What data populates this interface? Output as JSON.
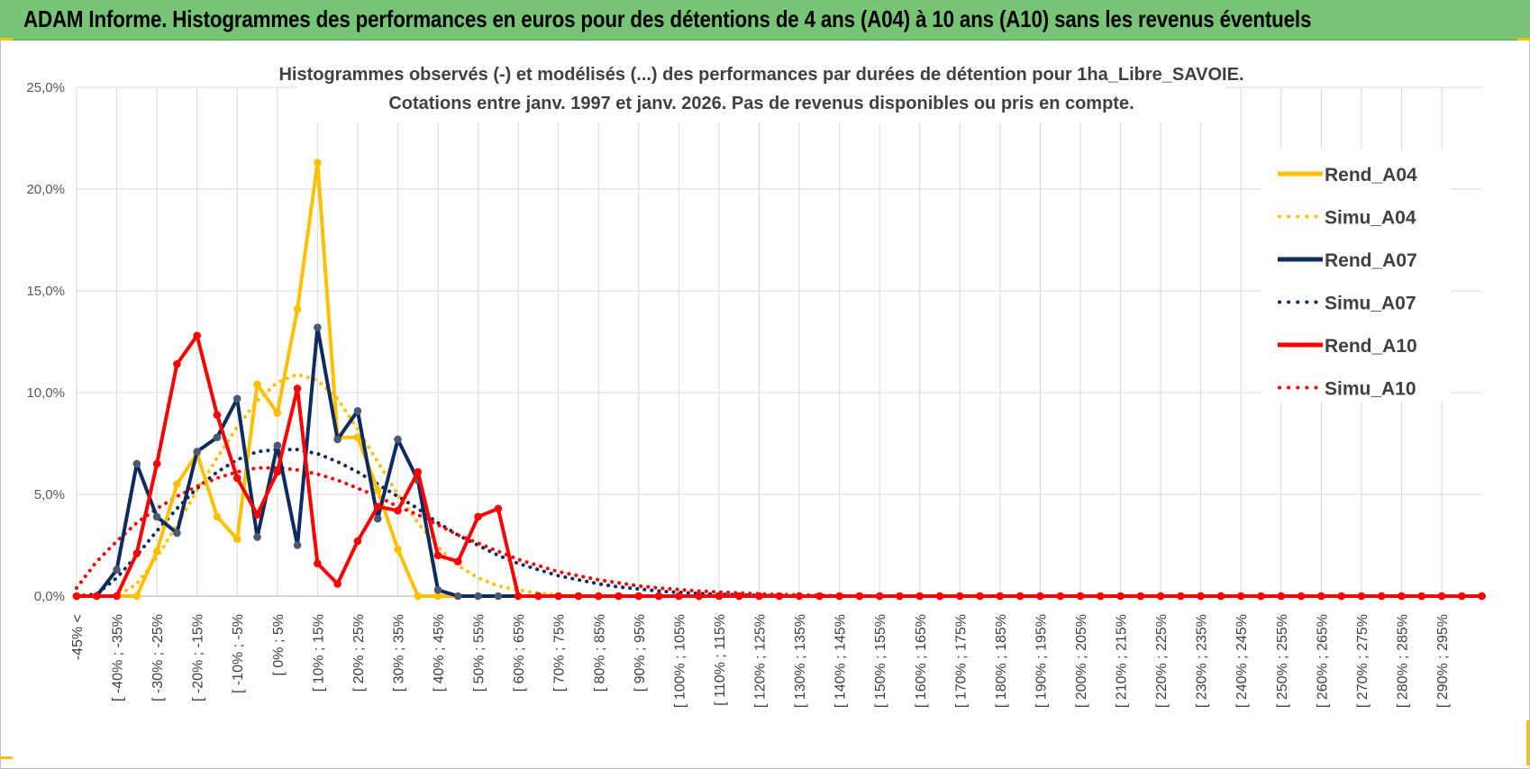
{
  "banner": {
    "title": "ADAM Informe. Histogrammes des performances en euros pour des détentions de 4 ans (A04) à 10 ans (A10) sans les revenus éventuels",
    "color": "#77c476"
  },
  "colors": {
    "Rend_A04": "#ffc000",
    "Simu_A04": "#ffc000",
    "Rend_A07": "#0e2a5e",
    "Simu_A07": "#0e2a5e",
    "Rend_A10": "#ff0000",
    "Simu_A10": "#ff0000",
    "marker_A07": "#4a5a70"
  },
  "chart_data": {
    "type": "line",
    "title_lines": [
      "Histogrammes observés (-) et modélisés (...) des performances par durées de détention pour 1ha_Libre_SAVOIE.",
      "Cotations entre janv. 1997 et janv. 2026. Pas de revenus disponibles ou pris en compte."
    ],
    "ylim": [
      0,
      25
    ],
    "y_ticks": [
      "0,0%",
      "5,0%",
      "10,0%",
      "15,0%",
      "20,0%",
      "25,0%"
    ],
    "grid": true,
    "legend_position": "right",
    "x_labels": [
      "-45% <",
      "[ -40% ; -35%",
      "[ -30% ; -25%",
      "[ -20% ; -15%",
      "[ -10% ; -5%",
      "[ 0% ; 5%",
      "[ 10% ; 15%",
      "[ 20% ; 25%",
      "[ 30% ; 35%",
      "[ 40% ; 45%",
      "[ 50% ; 55%",
      "[ 60% ; 65%",
      "[ 70% ; 75%",
      "[ 80% ; 85%",
      "[ 90% ; 95%",
      "[ 100% ; 105%",
      "[ 110% ; 115%",
      "[ 120% ; 125%",
      "[ 130% ; 135%",
      "[ 140% ; 145%",
      "[ 150% ; 155%",
      "[ 160% ; 165%",
      "[ 170% ; 175%",
      "[ 180% ; 185%",
      "[ 190% ; 195%",
      "[ 200% ; 205%",
      "[ 210% ; 215%",
      "[ 220% ; 225%",
      "[ 230% ; 235%",
      "[ 240% ; 245%",
      "[ 250% ; 255%",
      "[ 260% ; 265%",
      "[ 270% ; 275%",
      "[ 280% ; 285%",
      "[ 290% ; 295%"
    ],
    "num_points": 71,
    "series": [
      {
        "name": "Rend_A04",
        "style": "solid",
        "values": [
          0,
          0,
          0,
          0,
          2.2,
          5.5,
          7.0,
          3.9,
          2.8,
          10.4,
          9.0,
          14.1,
          21.3,
          7.8,
          7.8,
          5.2,
          2.3,
          0,
          0,
          0,
          0,
          0,
          0,
          0,
          0,
          0,
          0,
          0,
          0,
          0,
          0,
          0,
          0,
          0,
          0,
          0,
          0,
          0,
          0,
          0,
          0,
          0,
          0,
          0,
          0,
          0,
          0,
          0,
          0,
          0,
          0,
          0,
          0,
          0,
          0,
          0,
          0,
          0,
          0,
          0,
          0,
          0,
          0,
          0,
          0,
          0,
          0,
          0,
          0,
          0,
          0
        ]
      },
      {
        "name": "Simu_A04",
        "style": "dotted",
        "values": [
          0,
          0,
          0,
          0.6,
          1.9,
          3.5,
          5.2,
          6.8,
          8.3,
          9.6,
          10.5,
          10.9,
          10.6,
          9.7,
          8.2,
          6.6,
          5.0,
          3.6,
          2.4,
          1.5,
          0.9,
          0.5,
          0.3,
          0.15,
          0.05,
          0,
          0,
          0,
          0,
          0,
          0,
          0,
          0,
          0,
          0,
          0,
          0,
          0,
          0,
          0,
          0,
          0,
          0,
          0,
          0,
          0,
          0,
          0,
          0,
          0,
          0,
          0,
          0,
          0,
          0,
          0,
          0,
          0,
          0,
          0,
          0,
          0,
          0,
          0,
          0,
          0,
          0,
          0,
          0,
          0,
          0
        ]
      },
      {
        "name": "Rend_A07",
        "style": "solid",
        "values": [
          0,
          0,
          1.3,
          6.5,
          3.9,
          3.1,
          7.1,
          7.8,
          9.7,
          2.9,
          7.4,
          2.5,
          13.2,
          7.7,
          9.1,
          3.8,
          7.7,
          5.7,
          0.3,
          0,
          0,
          0,
          0,
          0,
          0,
          0,
          0,
          0,
          0,
          0,
          0,
          0,
          0,
          0,
          0,
          0,
          0,
          0,
          0,
          0,
          0,
          0,
          0,
          0,
          0,
          0,
          0,
          0,
          0,
          0,
          0,
          0,
          0,
          0,
          0,
          0,
          0,
          0,
          0,
          0,
          0,
          0,
          0,
          0,
          0,
          0,
          0,
          0,
          0,
          0,
          0
        ]
      },
      {
        "name": "Simu_A07",
        "style": "dotted",
        "values": [
          0,
          0.1,
          0.9,
          2.0,
          3.2,
          4.3,
          5.3,
          6.1,
          6.7,
          7.1,
          7.2,
          7.2,
          7.0,
          6.6,
          6.1,
          5.5,
          4.9,
          4.3,
          3.6,
          3.0,
          2.5,
          2.0,
          1.6,
          1.3,
          1.0,
          0.8,
          0.6,
          0.45,
          0.35,
          0.25,
          0.18,
          0.13,
          0.09,
          0.06,
          0.04,
          0.02,
          0,
          0,
          0,
          0,
          0,
          0,
          0,
          0,
          0,
          0,
          0,
          0,
          0,
          0,
          0,
          0,
          0,
          0,
          0,
          0,
          0,
          0,
          0,
          0,
          0,
          0,
          0,
          0,
          0,
          0,
          0,
          0,
          0,
          0,
          0
        ]
      },
      {
        "name": "Rend_A10",
        "style": "solid",
        "values": [
          0,
          0,
          0,
          2.1,
          6.5,
          11.4,
          12.8,
          8.9,
          5.8,
          4.0,
          6.1,
          10.2,
          1.6,
          0.6,
          2.7,
          4.4,
          4.2,
          6.1,
          2.0,
          1.7,
          3.9,
          4.3,
          0,
          0,
          0,
          0,
          0,
          0,
          0,
          0,
          0,
          0,
          0,
          0,
          0,
          0,
          0,
          0,
          0,
          0,
          0,
          0,
          0,
          0,
          0,
          0,
          0,
          0,
          0,
          0,
          0,
          0,
          0,
          0,
          0,
          0,
          0,
          0,
          0,
          0,
          0,
          0,
          0,
          0,
          0,
          0,
          0,
          0,
          0,
          0,
          0
        ]
      },
      {
        "name": "Simu_A10",
        "style": "dotted",
        "values": [
          0.4,
          1.7,
          2.7,
          3.6,
          4.3,
          4.9,
          5.4,
          5.8,
          6.1,
          6.3,
          6.3,
          6.2,
          6.0,
          5.7,
          5.3,
          4.9,
          4.4,
          4.0,
          3.5,
          3.0,
          2.6,
          2.2,
          1.8,
          1.5,
          1.2,
          1.0,
          0.8,
          0.65,
          0.5,
          0.4,
          0.32,
          0.25,
          0.2,
          0.15,
          0.11,
          0.08,
          0.06,
          0.04,
          0.02,
          0,
          0,
          0,
          0,
          0,
          0,
          0,
          0,
          0,
          0,
          0,
          0,
          0,
          0,
          0,
          0,
          0,
          0,
          0,
          0,
          0,
          0,
          0,
          0,
          0,
          0,
          0,
          0,
          0,
          0,
          0,
          0
        ]
      }
    ]
  }
}
